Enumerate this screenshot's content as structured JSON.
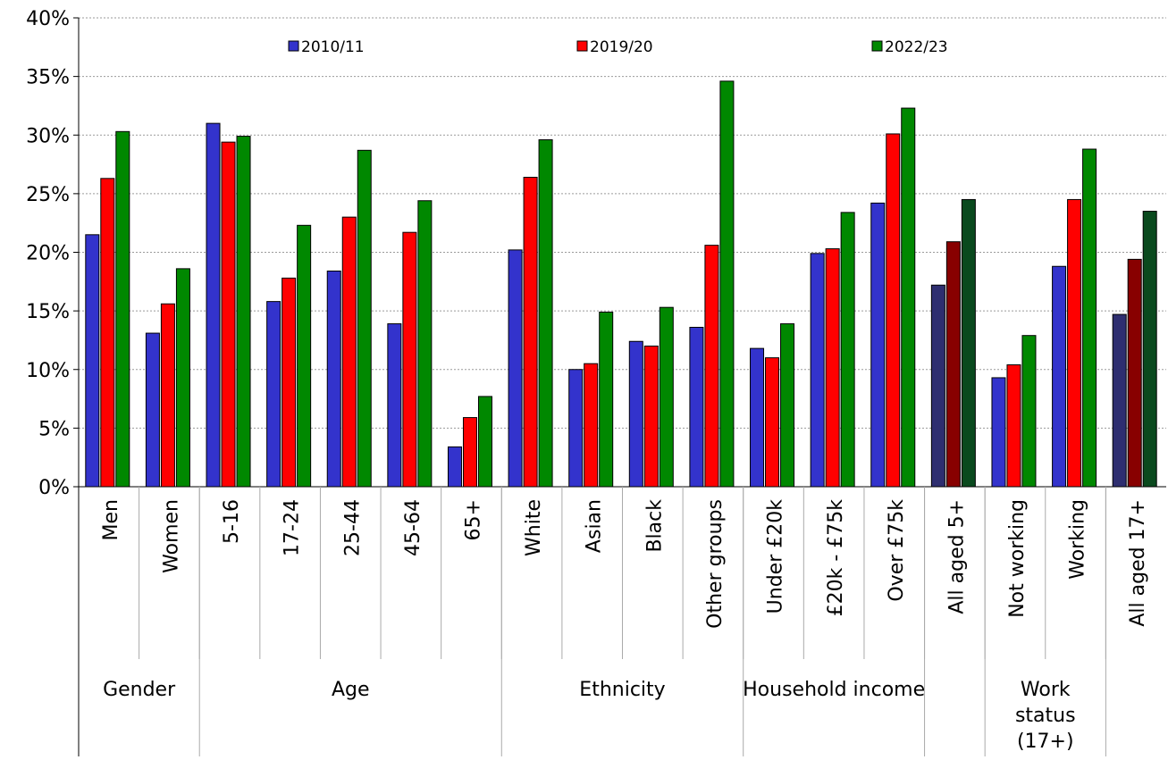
{
  "chart_data": {
    "type": "bar",
    "title": "",
    "xlabel": "",
    "ylabel": "",
    "ylim": [
      0,
      40
    ],
    "yticks": [
      "0%",
      "5%",
      "10%",
      "15%",
      "20%",
      "25%",
      "30%",
      "35%",
      "40%"
    ],
    "grid": true,
    "legend_position": "top",
    "categories": [
      "Men",
      "Women",
      "5-16",
      "17-24",
      "25-44",
      "45-64",
      "65+",
      "White",
      "Asian",
      "Black",
      "Other groups",
      "Under £20k",
      "£20k - £75k",
      "Over £75k",
      "All aged 5+",
      "Not working",
      "Working",
      "All aged 17+"
    ],
    "groups": [
      {
        "label": "Gender",
        "size": 2
      },
      {
        "label": "Age",
        "size": 5
      },
      {
        "label": "Ethnicity",
        "size": 4
      },
      {
        "label": "Household income",
        "size": 3
      },
      {
        "label": "",
        "size": 1
      },
      {
        "label": "Work status (17+)",
        "size": 2
      },
      {
        "label": "",
        "size": 1
      }
    ],
    "highlighted_categories": [
      "All aged 5+",
      "All aged 17+"
    ],
    "series": [
      {
        "name": "2010/11",
        "color": "#3333cc",
        "highlight_color": "#2e2e70",
        "values": [
          21.5,
          13.1,
          31.0,
          15.8,
          18.4,
          13.9,
          3.4,
          20.2,
          10.0,
          12.4,
          13.6,
          11.8,
          19.9,
          24.2,
          17.2,
          9.3,
          18.8,
          14.7
        ]
      },
      {
        "name": "2019/20",
        "color": "#ff0000",
        "highlight_color": "#880000",
        "values": [
          26.3,
          15.6,
          29.4,
          17.8,
          23.0,
          21.7,
          5.9,
          26.4,
          10.5,
          12.0,
          20.6,
          11.0,
          20.3,
          30.1,
          20.9,
          10.4,
          24.5,
          19.4
        ]
      },
      {
        "name": "2022/23",
        "color": "#008800",
        "highlight_color": "#0a4a1e",
        "values": [
          30.3,
          18.6,
          29.9,
          22.3,
          28.7,
          24.4,
          7.7,
          29.6,
          14.9,
          15.3,
          34.6,
          13.9,
          23.4,
          32.3,
          24.5,
          12.9,
          28.8,
          23.5
        ]
      }
    ]
  }
}
